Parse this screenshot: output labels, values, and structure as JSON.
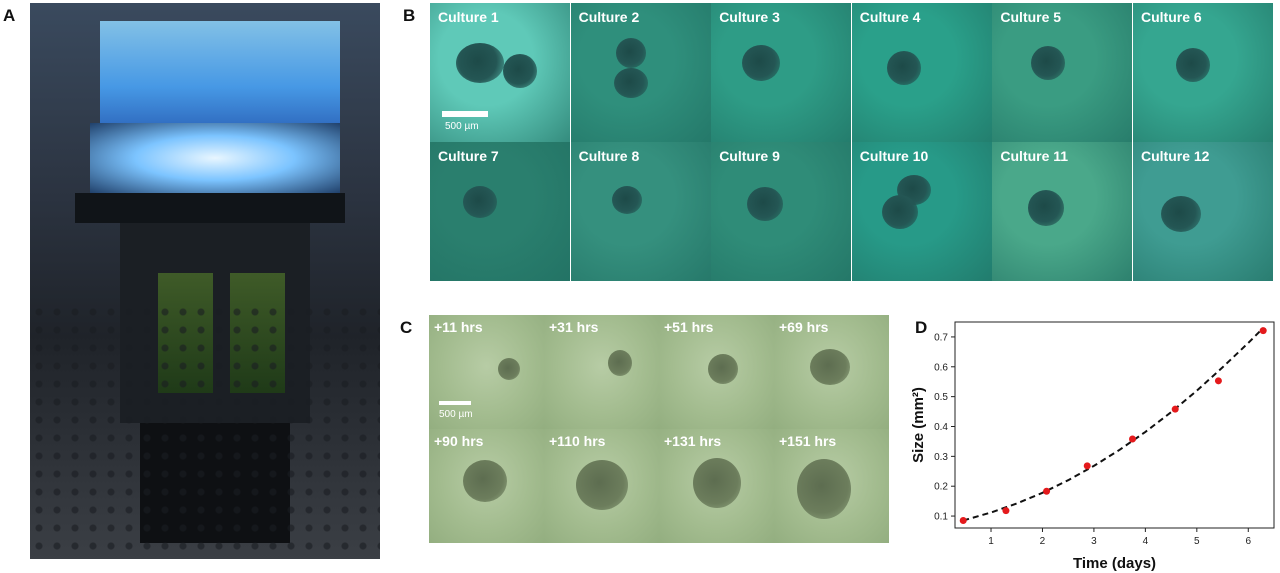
{
  "panels": {
    "a": "A",
    "b": "B",
    "c": "C",
    "d": "D"
  },
  "panel_b": {
    "scale_label": "500 µm",
    "cultures": [
      "Culture 1",
      "Culture 2",
      "Culture 3",
      "Culture 4",
      "Culture 5",
      "Culture 6",
      "Culture 7",
      "Culture 8",
      "Culture 9",
      "Culture 10",
      "Culture 11",
      "Culture 12"
    ]
  },
  "panel_c": {
    "scale_label": "500 µm",
    "times": [
      "+11 hrs",
      "+31 hrs",
      "+51 hrs",
      "+69 hrs",
      "+90 hrs",
      "+110 hrs",
      "+131 hrs",
      "+151 hrs"
    ]
  },
  "chart_data": {
    "type": "scatter",
    "xlabel": "Time (days)",
    "ylabel": "Size (mm²)",
    "xlim": [
      0.3,
      6.5
    ],
    "ylim": [
      0.06,
      0.75
    ],
    "xticks": [
      1,
      2,
      3,
      4,
      5,
      6
    ],
    "yticks": [
      0.1,
      0.2,
      0.3,
      0.4,
      0.5,
      0.6,
      0.7
    ],
    "grid": false,
    "series": [
      {
        "type": "scatter",
        "color": "#e41a1c",
        "x": [
          0.46,
          1.29,
          2.08,
          2.87,
          3.75,
          4.58,
          5.42,
          6.29
        ],
        "y": [
          0.085,
          0.118,
          0.183,
          0.268,
          0.358,
          0.458,
          0.553,
          0.721
        ]
      },
      {
        "type": "line",
        "style": "dashed",
        "color": "#111111",
        "x": [
          0.46,
          1.0,
          1.5,
          2.0,
          2.5,
          3.0,
          3.5,
          4.0,
          4.5,
          5.0,
          5.5,
          6.0,
          6.29
        ],
        "y": [
          0.085,
          0.112,
          0.142,
          0.178,
          0.22,
          0.268,
          0.322,
          0.382,
          0.448,
          0.52,
          0.598,
          0.68,
          0.73
        ]
      }
    ]
  }
}
